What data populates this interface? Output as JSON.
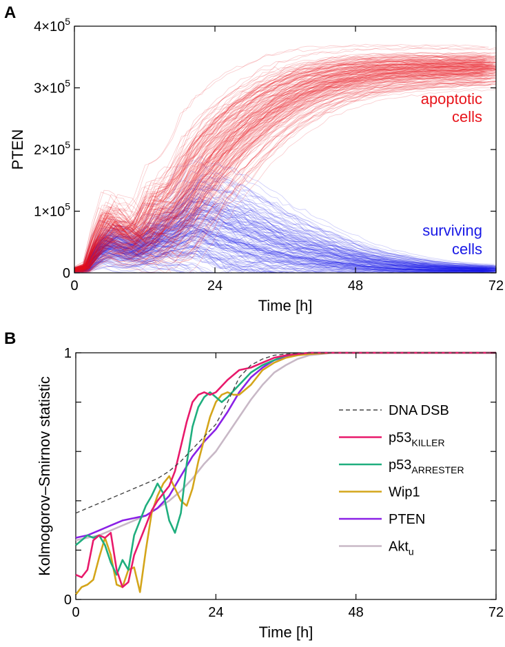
{
  "panels": {
    "a": {
      "label": "A"
    },
    "b": {
      "label": "B"
    }
  },
  "chart_data": [
    {
      "type": "line",
      "panel": "A",
      "xlabel": "Time [h]",
      "ylabel": "PTEN",
      "xlim": [
        0,
        72
      ],
      "ylim": [
        0,
        400000
      ],
      "x_ticks": [
        0,
        24,
        48,
        72
      ],
      "x_tick_labels": [
        "0",
        "24",
        "48",
        "72"
      ],
      "y_ticks": [
        0,
        100000,
        200000,
        300000,
        400000
      ],
      "y_tick_labels": [
        {
          "mantissa": "0",
          "exponent": ""
        },
        {
          "mantissa": "1×10",
          "exponent": "5"
        },
        {
          "mantissa": "2×10",
          "exponent": "5"
        },
        {
          "mantissa": "3×10",
          "exponent": "5"
        },
        {
          "mantissa": "4×10",
          "exponent": "5"
        }
      ],
      "grid": false,
      "x_samples": [
        0,
        2,
        4,
        6,
        8,
        10,
        12,
        14,
        16,
        18,
        20,
        22,
        24,
        27,
        30,
        33,
        36,
        40,
        44,
        48,
        52,
        56,
        60,
        64,
        68,
        72
      ],
      "series": [
        {
          "name": "apoptotic cells",
          "color": "#e8141b",
          "line1": "apoptotic",
          "line2": "cells",
          "mean": [
            5000,
            8000,
            45000,
            70000,
            65000,
            48000,
            58000,
            90000,
            85000,
            100000,
            135000,
            160000,
            185000,
            215000,
            240000,
            262000,
            280000,
            298000,
            310000,
            318000,
            323000,
            326000,
            328000,
            329000,
            330000,
            331000
          ],
          "spread": [
            2000,
            4000,
            15000,
            25000,
            25000,
            20000,
            25000,
            35000,
            40000,
            45000,
            50000,
            48000,
            45000,
            42000,
            38000,
            34000,
            30000,
            26000,
            22000,
            20000,
            18000,
            17000,
            16000,
            15000,
            15000,
            14000
          ]
        },
        {
          "name": "surviving cells",
          "color": "#1818e6",
          "line1": "surviving",
          "line2": "cells",
          "mean": [
            5000,
            7000,
            35000,
            50000,
            45000,
            35000,
            42000,
            60000,
            58000,
            70000,
            85000,
            82000,
            75000,
            65000,
            55000,
            46000,
            38000,
            30000,
            23000,
            17000,
            12000,
            9000,
            7000,
            6000,
            5000,
            5000
          ],
          "spread": [
            2000,
            3000,
            12000,
            18000,
            18000,
            15000,
            18000,
            25000,
            28000,
            35000,
            45000,
            50000,
            52000,
            50000,
            46000,
            42000,
            36000,
            30000,
            24000,
            18000,
            14000,
            11000,
            8000,
            6000,
            5000,
            4000
          ]
        }
      ]
    },
    {
      "type": "line",
      "panel": "B",
      "xlabel": "Time [h]",
      "ylabel": "Kolmogorov–Smirnov statistic",
      "xlim": [
        0,
        72
      ],
      "ylim": [
        0,
        1
      ],
      "x_ticks": [
        0,
        24,
        48,
        72
      ],
      "x_tick_labels": [
        "0",
        "24",
        "48",
        "72"
      ],
      "y_ticks": [
        0,
        0.2,
        0.4,
        0.6,
        0.8,
        1
      ],
      "y_tick_labels": [
        "0",
        "",
        "",
        "",
        "",
        "1"
      ],
      "grid": false,
      "legend_position": "right",
      "series": [
        {
          "name": "DNA DSB",
          "sub": "",
          "color": "#444444",
          "dashed": true,
          "x": [
            0,
            2,
            4,
            6,
            8,
            10,
            12,
            14,
            16,
            18,
            20,
            22,
            24,
            26,
            28,
            30,
            32,
            34,
            36,
            38,
            40,
            44,
            48,
            60,
            72
          ],
          "y": [
            0.35,
            0.37,
            0.39,
            0.41,
            0.43,
            0.45,
            0.47,
            0.49,
            0.52,
            0.56,
            0.61,
            0.66,
            0.71,
            0.8,
            0.9,
            0.95,
            0.975,
            0.99,
            0.995,
            0.998,
            1.0,
            1.0,
            1.0,
            1.0,
            1.0
          ]
        },
        {
          "name": "p53",
          "sub": "KILLER",
          "color": "#e8196b",
          "dashed": false,
          "x": [
            0,
            1,
            2,
            3,
            4,
            5,
            6,
            7,
            8,
            9,
            10,
            11,
            12,
            13,
            14,
            15,
            16,
            17,
            18,
            19,
            20,
            21,
            22,
            23,
            24,
            26,
            28,
            30,
            32,
            34,
            36,
            38,
            40,
            44,
            48,
            60,
            72
          ],
          "y": [
            0.1,
            0.09,
            0.12,
            0.24,
            0.26,
            0.25,
            0.27,
            0.12,
            0.05,
            0.07,
            0.18,
            0.24,
            0.3,
            0.36,
            0.4,
            0.43,
            0.46,
            0.52,
            0.62,
            0.72,
            0.8,
            0.83,
            0.84,
            0.83,
            0.84,
            0.89,
            0.93,
            0.94,
            0.96,
            0.98,
            0.99,
            0.995,
            1.0,
            1.0,
            1.0,
            1.0,
            1.0
          ]
        },
        {
          "name": "p53",
          "sub": "ARRESTER",
          "color": "#1fae7e",
          "dashed": false,
          "x": [
            0,
            1,
            2,
            3,
            4,
            5,
            6,
            7,
            8,
            9,
            10,
            11,
            12,
            13,
            14,
            15,
            16,
            17,
            18,
            19,
            20,
            21,
            22,
            23,
            24,
            25,
            26,
            28,
            30,
            32,
            34,
            36,
            38,
            40,
            44,
            48,
            60,
            72
          ],
          "y": [
            0.22,
            0.24,
            0.26,
            0.25,
            0.26,
            0.22,
            0.15,
            0.1,
            0.16,
            0.12,
            0.26,
            0.32,
            0.38,
            0.42,
            0.47,
            0.43,
            0.32,
            0.27,
            0.35,
            0.55,
            0.7,
            0.78,
            0.82,
            0.84,
            0.82,
            0.8,
            0.82,
            0.87,
            0.92,
            0.95,
            0.97,
            0.99,
            0.995,
            1.0,
            1.0,
            1.0,
            1.0,
            1.0
          ]
        },
        {
          "name": "Wip1",
          "sub": "",
          "color": "#d4a51a",
          "dashed": false,
          "x": [
            0,
            1,
            2,
            3,
            4,
            5,
            6,
            7,
            8,
            9,
            10,
            11,
            12,
            13,
            14,
            15,
            16,
            17,
            18,
            19,
            20,
            21,
            22,
            23,
            24,
            25,
            26,
            27,
            28,
            30,
            32,
            34,
            36,
            38,
            40,
            44,
            48,
            60,
            72
          ],
          "y": [
            0.02,
            0.05,
            0.06,
            0.08,
            0.17,
            0.25,
            0.18,
            0.06,
            0.05,
            0.12,
            0.13,
            0.03,
            0.2,
            0.35,
            0.42,
            0.47,
            0.5,
            0.45,
            0.4,
            0.38,
            0.45,
            0.56,
            0.65,
            0.74,
            0.8,
            0.83,
            0.84,
            0.83,
            0.83,
            0.87,
            0.93,
            0.96,
            0.98,
            0.99,
            0.995,
            1.0,
            1.0,
            1.0,
            1.0
          ]
        },
        {
          "name": "PTEN",
          "sub": "",
          "color": "#8a20e6",
          "dashed": false,
          "x": [
            0,
            2,
            4,
            6,
            8,
            10,
            12,
            14,
            16,
            18,
            20,
            22,
            24,
            26,
            28,
            30,
            32,
            34,
            36,
            38,
            40,
            44,
            48,
            60,
            72
          ],
          "y": [
            0.25,
            0.26,
            0.28,
            0.3,
            0.32,
            0.33,
            0.34,
            0.37,
            0.42,
            0.5,
            0.58,
            0.64,
            0.69,
            0.76,
            0.84,
            0.9,
            0.94,
            0.97,
            0.985,
            0.995,
            1.0,
            1.0,
            1.0,
            1.0,
            1.0
          ]
        },
        {
          "name": "Akt",
          "sub": "u",
          "color": "#c8b8c6",
          "dashed": false,
          "x": [
            0,
            2,
            4,
            6,
            8,
            10,
            12,
            14,
            16,
            18,
            20,
            22,
            24,
            26,
            28,
            30,
            32,
            34,
            36,
            38,
            40,
            42,
            44,
            48,
            60,
            72
          ],
          "y": [
            0.24,
            0.25,
            0.26,
            0.28,
            0.3,
            0.32,
            0.34,
            0.37,
            0.4,
            0.44,
            0.49,
            0.55,
            0.6,
            0.67,
            0.74,
            0.81,
            0.87,
            0.92,
            0.95,
            0.975,
            0.99,
            0.995,
            1.0,
            1.0,
            1.0,
            1.0
          ]
        }
      ]
    }
  ]
}
